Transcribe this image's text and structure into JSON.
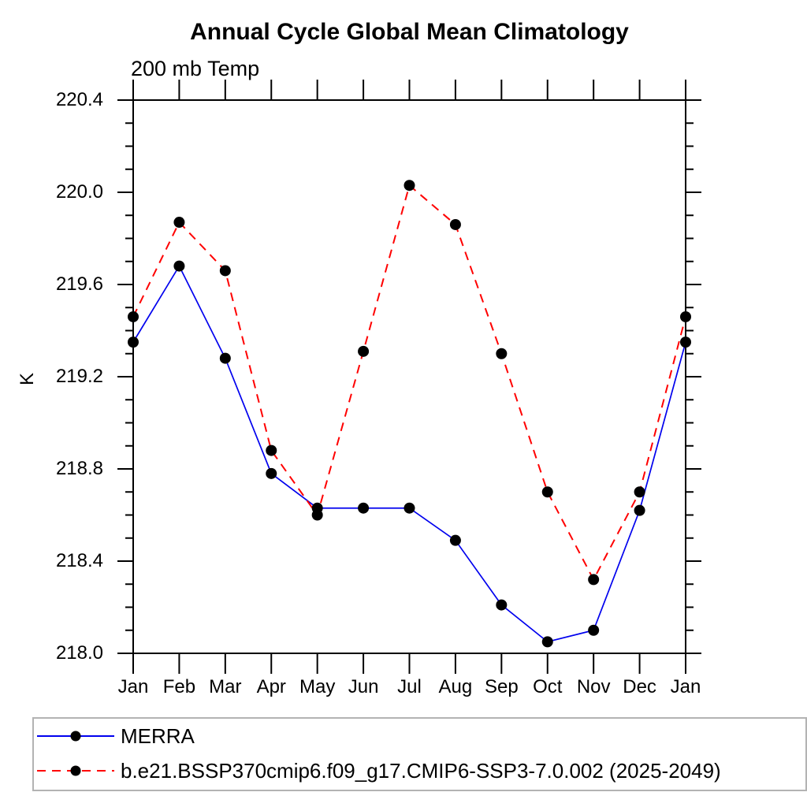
{
  "page": {
    "background": "#ffffff"
  },
  "chart_data": {
    "type": "line",
    "title": "Annual Cycle Global Mean Climatology",
    "subtitle": "200 mb Temp",
    "ylabel": "K",
    "xlabel": "",
    "categories": [
      "Jan",
      "Feb",
      "Mar",
      "Apr",
      "May",
      "Jun",
      "Jul",
      "Aug",
      "Sep",
      "Oct",
      "Nov",
      "Dec",
      "Jan"
    ],
    "series": [
      {
        "name": "MERRA",
        "line_color": "#0000ee",
        "line_style": "solid",
        "marker": "filled-circle",
        "marker_color": "#000000",
        "values": [
          219.35,
          219.68,
          219.28,
          218.78,
          218.63,
          218.63,
          218.63,
          218.49,
          218.21,
          218.05,
          218.1,
          218.62,
          219.35
        ]
      },
      {
        "name": "b.e21.BSSP370cmip6.f09_g17.CMIP6-SSP3-7.0.002 (2025-2049)",
        "line_color": "#ff0000",
        "line_style": "dashed",
        "marker": "filled-circle",
        "marker_color": "#000000",
        "values": [
          219.46,
          219.87,
          219.66,
          218.88,
          218.6,
          219.31,
          220.03,
          219.86,
          219.3,
          218.7,
          218.32,
          218.7,
          219.46
        ]
      }
    ],
    "ylim": [
      218.0,
      220.4
    ],
    "ytick_major_step": 0.4,
    "ytick_minor_step": 0.1,
    "ytick_labels": [
      "218.0",
      "218.4",
      "218.8",
      "219.2",
      "219.6",
      "220.0",
      "220.4"
    ],
    "grid": false,
    "axis_color": "#000000",
    "legend_position": "bottom-left-box",
    "legend_border_color": "#b3b3b3"
  }
}
